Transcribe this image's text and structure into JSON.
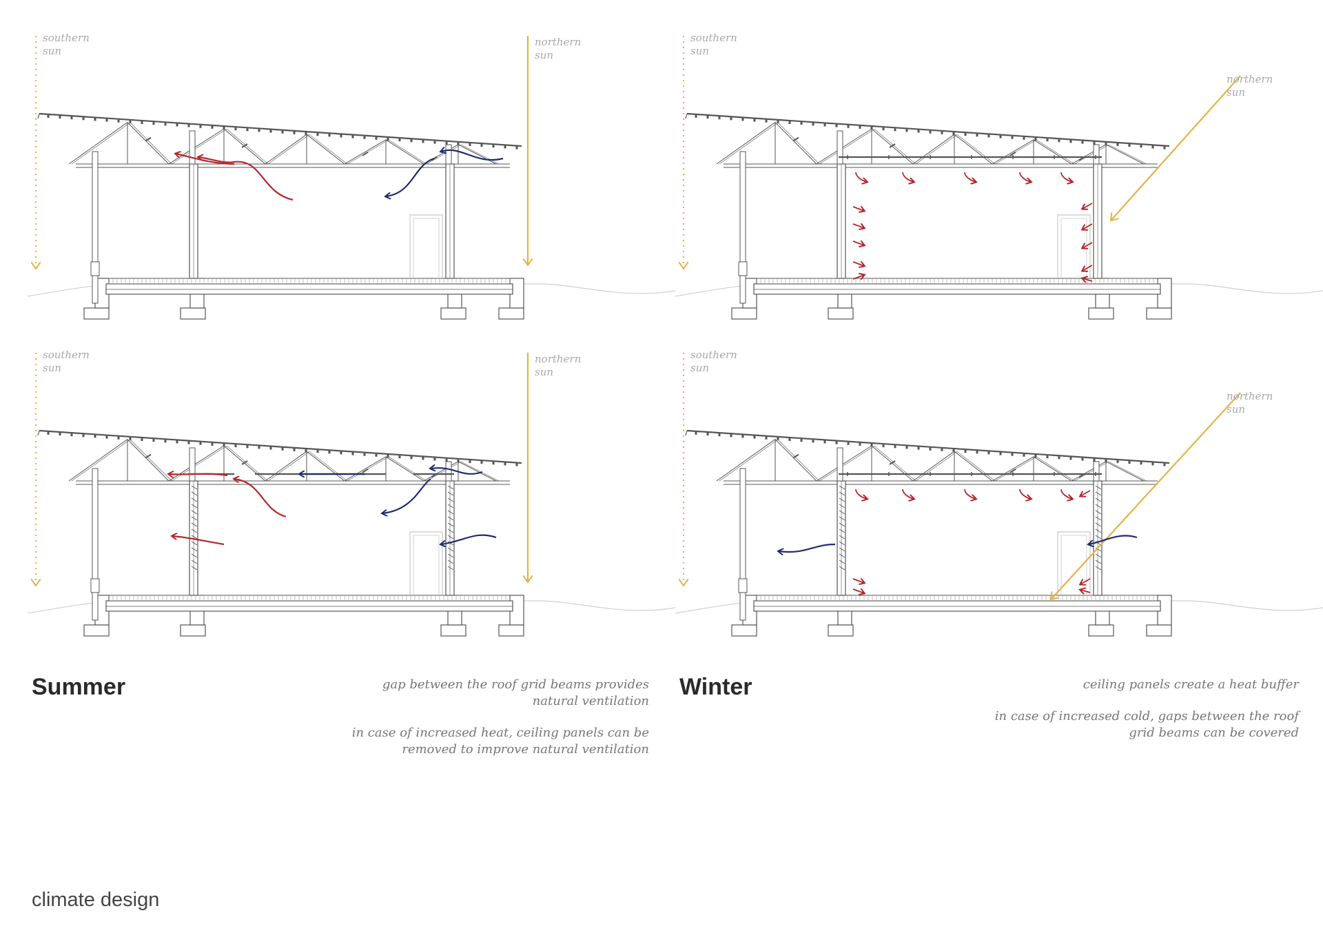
{
  "page": {
    "title": "climate design"
  },
  "labels": {
    "southern_sun": [
      "southern",
      "sun"
    ],
    "northern_sun": [
      "northern",
      "sun"
    ]
  },
  "summer": {
    "heading": "Summer",
    "note_1": "gap between the roof grid beams provides\nnatural ventilation",
    "note_2": "in case of increased heat, ceiling panels can be\nremoved to improve natural ventilation"
  },
  "winter": {
    "heading": "Winter",
    "note_1": "ceiling panels create a heat buffer",
    "note_2": "in case of increased cold, gaps between the roof\ngrid beams can be covered"
  },
  "colors": {
    "sun": "#e0b447",
    "warm_air": "#b3262c",
    "cool_air": "#1f2a6b",
    "structure": "#555555",
    "faint_structure": "#c8c8c8",
    "ground": "#cfcfcf"
  }
}
